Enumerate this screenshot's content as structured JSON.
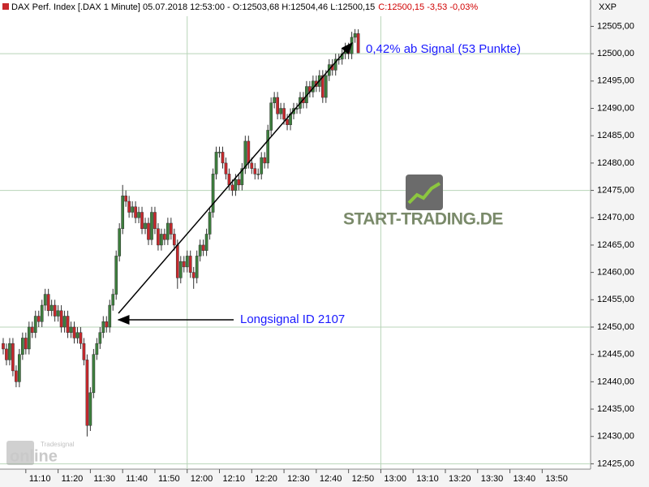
{
  "chart_data": {
    "type": "candlestick",
    "header": "DAX Perf. Index [.DAX  1 Minute] 05.07.2018 12:53:00 - O:12503,68 H:12504,46 L:12500,15",
    "header_change": "C:12500,15 -3,53 -0,03%",
    "axis_title": "XXP",
    "annotations": [
      "0,42% ab Signal (53 Punkte)",
      "Longsignal ID 2107"
    ],
    "watermark": "START-TRADING.DE",
    "brand": [
      "Tradesignal",
      "online"
    ],
    "up_color": "#3d7f3d",
    "down_color": "#c8282c",
    "categories": [
      "11:03",
      "11:04",
      "11:05",
      "11:06",
      "11:07",
      "11:08",
      "11:09",
      "11:10",
      "11:11",
      "11:12",
      "11:13",
      "11:14",
      "11:15",
      "11:16",
      "11:17",
      "11:18",
      "11:19",
      "11:20",
      "11:21",
      "11:22",
      "11:23",
      "11:24",
      "11:25",
      "11:26",
      "11:27",
      "11:28",
      "11:29",
      "11:30",
      "11:31",
      "11:32",
      "11:33",
      "11:34",
      "11:35",
      "11:36",
      "11:37",
      "11:38",
      "11:39",
      "11:40",
      "11:41",
      "11:42",
      "11:43",
      "11:44",
      "11:45",
      "11:46",
      "11:47",
      "11:48",
      "11:49",
      "11:50",
      "11:51",
      "11:52",
      "11:53",
      "11:54",
      "11:55",
      "11:56",
      "11:57",
      "11:58",
      "11:59",
      "12:00",
      "12:01",
      "12:02",
      "12:03",
      "12:04",
      "12:05",
      "12:06",
      "12:07",
      "12:08",
      "12:09",
      "12:10",
      "12:11",
      "12:12",
      "12:13",
      "12:14",
      "12:15",
      "12:16",
      "12:17",
      "12:18",
      "12:19",
      "12:20",
      "12:21",
      "12:22",
      "12:23",
      "12:24",
      "12:25",
      "12:26",
      "12:27",
      "12:28",
      "12:29",
      "12:30",
      "12:31",
      "12:32",
      "12:33",
      "12:34",
      "12:35",
      "12:36",
      "12:37",
      "12:38",
      "12:39",
      "12:40",
      "12:41",
      "12:42",
      "12:43",
      "12:44",
      "12:45",
      "12:46",
      "12:47",
      "12:48",
      "12:49",
      "12:50",
      "12:51",
      "12:52",
      "12:53"
    ],
    "open": [
      12447,
      12446,
      12444,
      12447,
      12442,
      12440,
      12445,
      12448,
      12446,
      12450,
      12449,
      12452,
      12451,
      12454,
      12456,
      12453,
      12454,
      12452,
      12453,
      12450,
      12452,
      12449,
      12450,
      12448,
      12449,
      12447,
      12444,
      12432,
      12438,
      12445,
      12447,
      12449,
      12451,
      12450,
      12454,
      12456,
      12463,
      12468,
      12474,
      12473,
      12471,
      12472,
      12470,
      12471,
      12468,
      12469,
      12466,
      12471,
      12468,
      12465,
      12467,
      12466,
      12469,
      12467,
      12465,
      12459,
      12462,
      12461,
      12463,
      12460,
      12459,
      12463,
      12465,
      12464,
      12467,
      12471,
      12478,
      12482,
      12482,
      12480,
      12478,
      12476,
      12475,
      12477,
      12476,
      12479,
      12484,
      12480,
      12479,
      12478,
      12478,
      12481,
      12480,
      12486,
      12491,
      12492,
      12489,
      12490,
      12488,
      12487,
      12489,
      12490,
      12490,
      12492,
      12491,
      12494,
      12493,
      12495,
      12494,
      12496,
      12492,
      12496,
      12498,
      12497,
      12499,
      12499,
      12500,
      12501,
      12500,
      12503,
      12503.68
    ],
    "high": [
      12448,
      12447,
      12448,
      12448,
      12443,
      12446,
      12449,
      12449,
      12451,
      12451,
      12453,
      12453,
      12455,
      12457,
      12457,
      12455,
      12455,
      12454,
      12454,
      12453,
      12453,
      12451,
      12451,
      12450,
      12450,
      12448,
      12445,
      12439,
      12446,
      12448,
      12450,
      12452,
      12452,
      12455,
      12457,
      12464,
      12469,
      12476,
      12475,
      12474,
      12473,
      12473,
      12472,
      12472,
      12470,
      12470,
      12472,
      12472,
      12469,
      12468,
      12468,
      12470,
      12470,
      12468,
      12466,
      12463,
      12463,
      12464,
      12464,
      12461,
      12464,
      12466,
      12466,
      12468,
      12472,
      12479,
      12483,
      12483,
      12483,
      12481,
      12479,
      12477,
      12478,
      12478,
      12480,
      12485,
      12485,
      12481,
      12480,
      12479,
      12482,
      12482,
      12487,
      12492,
      12493,
      12493,
      12491,
      12491,
      12489,
      12490,
      12491,
      12491,
      12493,
      12493,
      12495,
      12495,
      12496,
      12496,
      12497,
      12497,
      12497,
      12499,
      12499,
      12500,
      12500,
      12501,
      12502,
      12502,
      12504,
      12504.5,
      12504.46
    ],
    "low": [
      12445,
      12443,
      12443,
      12441,
      12439,
      12439,
      12444,
      12445,
      12445,
      12448,
      12448,
      12450,
      12450,
      12453,
      12452,
      12452,
      12451,
      12451,
      12449,
      12449,
      12448,
      12448,
      12447,
      12447,
      12446,
      12443,
      12430,
      12431,
      12437,
      12444,
      12446,
      12448,
      12449,
      12449,
      12453,
      12455,
      12462,
      12467,
      12472,
      12470,
      12470,
      12469,
      12469,
      12467,
      12467,
      12465,
      12465,
      12467,
      12464,
      12464,
      12465,
      12465,
      12466,
      12464,
      12457,
      12458,
      12460,
      12460,
      12459,
      12457,
      12458,
      12462,
      12463,
      12463,
      12466,
      12470,
      12477,
      12481,
      12479,
      12477,
      12475,
      12474,
      12474,
      12475,
      12475,
      12478,
      12479,
      12478,
      12477,
      12477,
      12477,
      12479,
      12479,
      12485,
      12490,
      12488,
      12488,
      12487,
      12486,
      12486,
      12488,
      12489,
      12489,
      12490,
      12490,
      12492,
      12492,
      12493,
      12493,
      12491,
      12491,
      12495,
      12496,
      12496,
      12498,
      12498,
      12499,
      12499,
      12499,
      12502,
      12500.15
    ],
    "close": [
      12446,
      12444,
      12447,
      12442,
      12440,
      12445,
      12448,
      12446,
      12450,
      12449,
      12452,
      12451,
      12454,
      12456,
      12453,
      12454,
      12452,
      12453,
      12450,
      12452,
      12449,
      12450,
      12448,
      12449,
      12447,
      12444,
      12432,
      12438,
      12445,
      12447,
      12449,
      12451,
      12450,
      12454,
      12456,
      12463,
      12468,
      12474,
      12473,
      12471,
      12472,
      12470,
      12471,
      12468,
      12469,
      12466,
      12471,
      12468,
      12465,
      12467,
      12466,
      12469,
      12467,
      12465,
      12459,
      12462,
      12461,
      12463,
      12460,
      12459,
      12463,
      12465,
      12464,
      12467,
      12471,
      12478,
      12482,
      12482,
      12480,
      12478,
      12476,
      12475,
      12477,
      12476,
      12479,
      12484,
      12480,
      12479,
      12478,
      12478,
      12481,
      12480,
      12486,
      12491,
      12492,
      12489,
      12490,
      12488,
      12487,
      12489,
      12490,
      12490,
      12492,
      12491,
      12494,
      12493,
      12495,
      12494,
      12496,
      12492,
      12496,
      12498,
      12497,
      12499,
      12499,
      12500,
      12501,
      12500,
      12503,
      12503.68,
      12500.15
    ],
    "xlim": [
      "11:02",
      "14:05"
    ],
    "xticks": [
      "11:10",
      "11:20",
      "11:30",
      "11:40",
      "11:50",
      "12:00",
      "12:10",
      "12:20",
      "12:30",
      "12:40",
      "12:50",
      "13:00",
      "13:10",
      "13:20",
      "13:30",
      "13:40",
      "13:50"
    ],
    "xgrid": [
      "12:00",
      "13:00"
    ],
    "ylim": [
      12424.02,
      12509.82
    ],
    "yticks": [
      {
        "value": 12425,
        "label": "12425,00"
      },
      {
        "value": 12430,
        "label": "12430,00"
      },
      {
        "value": 12435,
        "label": "12435,00"
      },
      {
        "value": 12440,
        "label": "12440,00"
      },
      {
        "value": 12445,
        "label": "12445,00"
      },
      {
        "value": 12450,
        "label": "12450,00"
      },
      {
        "value": 12455,
        "label": "12455,00"
      },
      {
        "value": 12460,
        "label": "12460,00"
      },
      {
        "value": 12465,
        "label": "12465,00"
      },
      {
        "value": 12470,
        "label": "12470,00"
      },
      {
        "value": 12475,
        "label": "12475,00"
      },
      {
        "value": 12480,
        "label": "12480,00"
      },
      {
        "value": 12485,
        "label": "12485,00"
      },
      {
        "value": 12490,
        "label": "12490,00"
      },
      {
        "value": 12495,
        "label": "12495,00"
      },
      {
        "value": 12500,
        "label": "12500,00"
      },
      {
        "value": 12505,
        "label": "12505,00"
      }
    ],
    "ygrid": [
      12425,
      12450,
      12475,
      12500
    ]
  }
}
